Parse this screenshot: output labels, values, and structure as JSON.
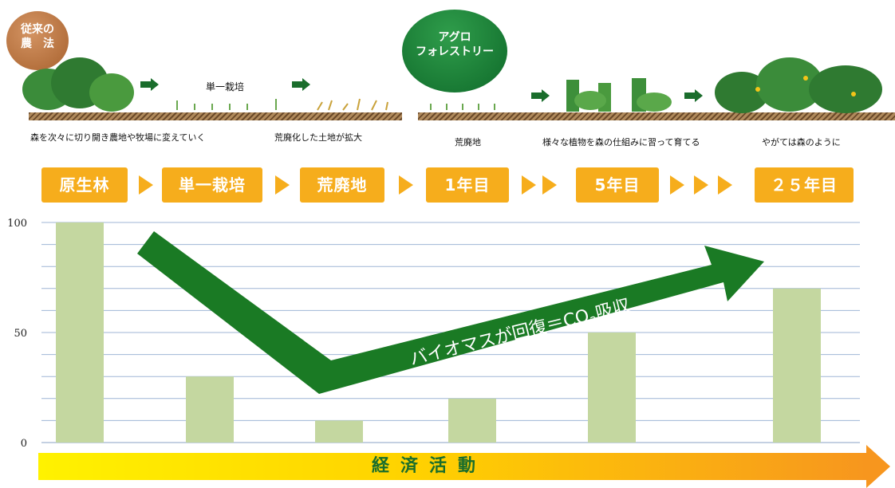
{
  "illustration": {
    "traditional_badge": "従来の\n農　法",
    "agroforestry_badge": "アグロ\nフォレストリー",
    "monoculture_caption": "単一栽培",
    "captions": [
      "森を次々に切り開き農地や牧場に変えていく",
      "荒廃化した土地が拡大",
      "荒廃地",
      "様々な植物を森の仕組みに習って育てる",
      "やがては森のように"
    ]
  },
  "colors": {
    "bar": "#c4d7a0",
    "gridline": "#9fb6d6",
    "green_arrow": "#1a7a24",
    "stage_label": "#f6ad1c",
    "econ_text": "#1a6d2c"
  },
  "chart_data": {
    "type": "bar",
    "categories": [
      "原生林",
      "単一栽培",
      "荒廃地",
      "1年目",
      "5年目",
      "２５年目"
    ],
    "values": [
      100,
      30,
      10,
      20,
      50,
      70
    ],
    "ylim": [
      0,
      100
    ],
    "y_ticks": [
      0,
      50,
      100
    ],
    "grid": true,
    "annotation": "バイオマスが回復＝CO2吸収",
    "bottom_band_label": "経済活動"
  }
}
